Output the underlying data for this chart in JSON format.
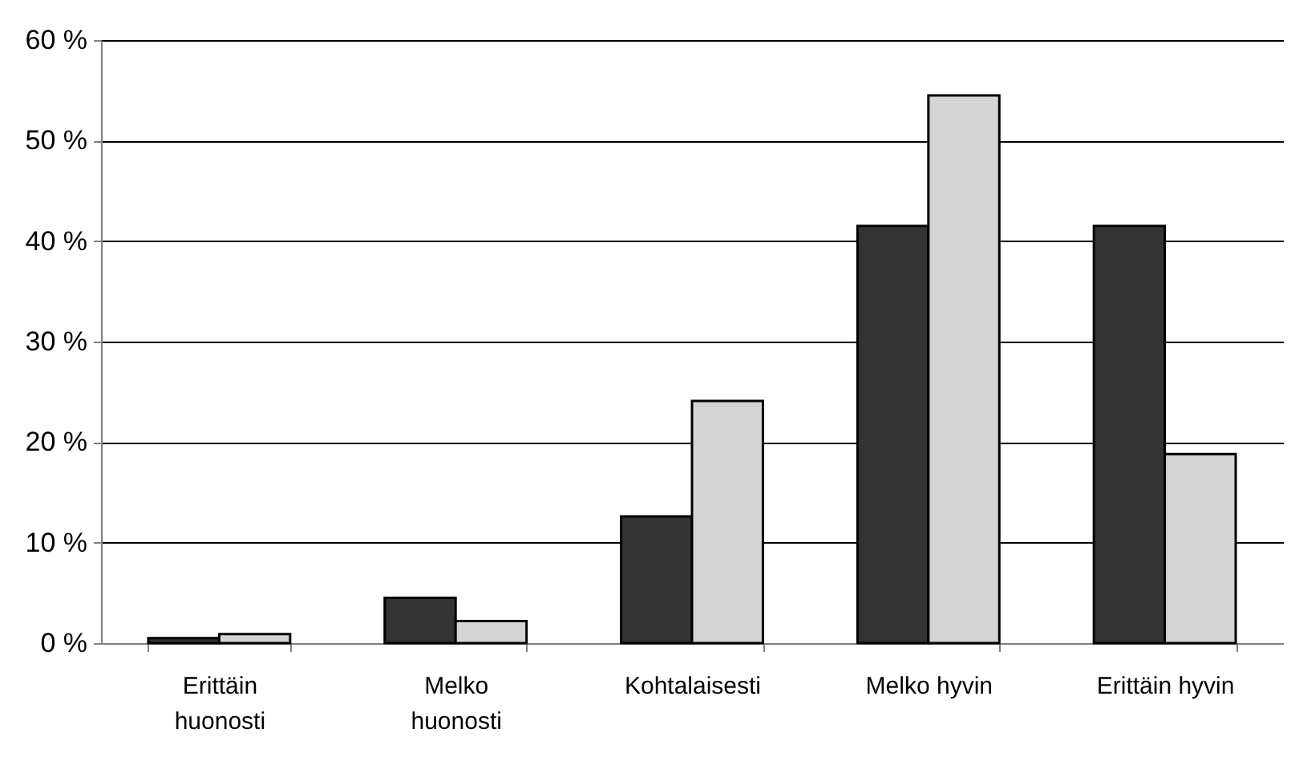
{
  "chart_data": {
    "type": "bar",
    "categories": [
      "Erittäin huonosti",
      "Melko huonosti",
      "Kohtalaisesti",
      "Melko hyvin",
      "Erittäin hyvin"
    ],
    "series": [
      {
        "color": "#333333",
        "values": [
          0.5,
          4.5,
          12.6,
          41.5,
          41.5
        ]
      },
      {
        "color": "#d4d4d4",
        "values": [
          0.9,
          2.2,
          24.1,
          54.5,
          18.8
        ]
      }
    ],
    "ylim": [
      0,
      60
    ],
    "yticks": [
      {
        "value": 0,
        "label": "0 %"
      },
      {
        "value": 10,
        "label": "10 %"
      },
      {
        "value": 20,
        "label": "20 %"
      },
      {
        "value": 30,
        "label": "30 %"
      },
      {
        "value": 40,
        "label": "40 %"
      },
      {
        "value": 50,
        "label": "50 %"
      },
      {
        "value": 60,
        "label": "60 %"
      }
    ],
    "grid": "y",
    "legend": false
  }
}
